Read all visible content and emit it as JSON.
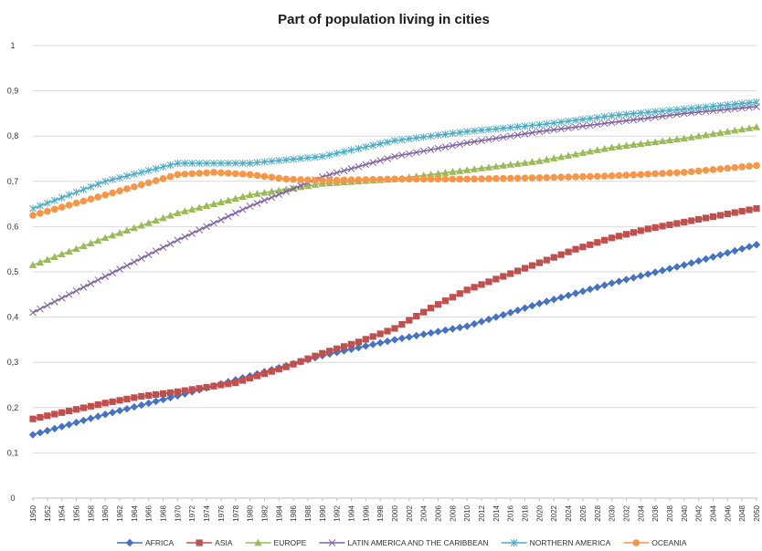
{
  "chart_data": {
    "type": "line",
    "title": "Part of population living in cities",
    "xlabel": "",
    "ylabel": "",
    "ylim": [
      0,
      1
    ],
    "y_ticks": [
      "0",
      "0,1",
      "0,2",
      "0,3",
      "0,4",
      "0,5",
      "0,6",
      "0,7",
      "0,8",
      "0,9",
      "1"
    ],
    "x_range": [
      1950,
      2050
    ],
    "x_tick_labels": [
      "1950",
      "1952",
      "1954",
      "1956",
      "1958",
      "1960",
      "1962",
      "1964",
      "1966",
      "1968",
      "1970",
      "1972",
      "1974",
      "1976",
      "1978",
      "1980",
      "1982",
      "1984",
      "1986",
      "1988",
      "1990",
      "1992",
      "1994",
      "1996",
      "1998",
      "2000",
      "2002",
      "2004",
      "2006",
      "2008",
      "2010",
      "2012",
      "2014",
      "2016",
      "2018",
      "2020",
      "2022",
      "2024",
      "2026",
      "2028",
      "2030",
      "2032",
      "2034",
      "2036",
      "2038",
      "2040",
      "2042",
      "2044",
      "2046",
      "2048",
      "2050"
    ],
    "grid": "horizontal",
    "legend_position": "bottom",
    "series": [
      {
        "name": "AFRICA",
        "color": "#4472c4",
        "marker": "diamond",
        "points": [
          [
            1950,
            0.14
          ],
          [
            1960,
            0.185
          ],
          [
            1970,
            0.226
          ],
          [
            1980,
            0.27
          ],
          [
            1990,
            0.315
          ],
          [
            2000,
            0.35
          ],
          [
            2010,
            0.38
          ],
          [
            2020,
            0.43
          ],
          [
            2030,
            0.475
          ],
          [
            2040,
            0.515
          ],
          [
            2050,
            0.56
          ]
        ]
      },
      {
        "name": "ASIA",
        "color": "#c0504d",
        "marker": "square",
        "points": [
          [
            1950,
            0.175
          ],
          [
            1960,
            0.21
          ],
          [
            1965,
            0.225
          ],
          [
            1970,
            0.235
          ],
          [
            1978,
            0.255
          ],
          [
            1985,
            0.29
          ],
          [
            1990,
            0.32
          ],
          [
            1995,
            0.345
          ],
          [
            2000,
            0.375
          ],
          [
            2005,
            0.42
          ],
          [
            2010,
            0.46
          ],
          [
            2015,
            0.49
          ],
          [
            2020,
            0.52
          ],
          [
            2025,
            0.55
          ],
          [
            2030,
            0.575
          ],
          [
            2035,
            0.595
          ],
          [
            2040,
            0.61
          ],
          [
            2045,
            0.625
          ],
          [
            2050,
            0.64
          ]
        ]
      },
      {
        "name": "EUROPE",
        "color": "#9bbb59",
        "marker": "triangle",
        "points": [
          [
            1950,
            0.515
          ],
          [
            1960,
            0.575
          ],
          [
            1970,
            0.63
          ],
          [
            1980,
            0.67
          ],
          [
            1990,
            0.695
          ],
          [
            2000,
            0.705
          ],
          [
            2010,
            0.725
          ],
          [
            2020,
            0.745
          ],
          [
            2030,
            0.775
          ],
          [
            2040,
            0.795
          ],
          [
            2050,
            0.82
          ]
        ]
      },
      {
        "name": "LATIN AMERICA AND THE CARIBBEAN",
        "color": "#8064a2",
        "marker": "x",
        "points": [
          [
            1950,
            0.41
          ],
          [
            1960,
            0.49
          ],
          [
            1970,
            0.57
          ],
          [
            1980,
            0.645
          ],
          [
            1990,
            0.71
          ],
          [
            2000,
            0.755
          ],
          [
            2010,
            0.785
          ],
          [
            2020,
            0.81
          ],
          [
            2030,
            0.83
          ],
          [
            2040,
            0.85
          ],
          [
            2050,
            0.865
          ]
        ]
      },
      {
        "name": "NORTHERN AMERICA",
        "color": "#4bacc6",
        "marker": "star",
        "points": [
          [
            1950,
            0.64
          ],
          [
            1960,
            0.7
          ],
          [
            1970,
            0.74
          ],
          [
            1980,
            0.74
          ],
          [
            1990,
            0.755
          ],
          [
            2000,
            0.79
          ],
          [
            2010,
            0.81
          ],
          [
            2020,
            0.825
          ],
          [
            2030,
            0.845
          ],
          [
            2040,
            0.86
          ],
          [
            2050,
            0.875
          ]
        ]
      },
      {
        "name": "OCEANIA",
        "color": "#f79646",
        "marker": "circle",
        "points": [
          [
            1950,
            0.625
          ],
          [
            1960,
            0.67
          ],
          [
            1970,
            0.715
          ],
          [
            1975,
            0.72
          ],
          [
            1980,
            0.715
          ],
          [
            1985,
            0.705
          ],
          [
            1990,
            0.702
          ],
          [
            2000,
            0.705
          ],
          [
            2010,
            0.705
          ],
          [
            2020,
            0.708
          ],
          [
            2030,
            0.712
          ],
          [
            2040,
            0.72
          ],
          [
            2050,
            0.735
          ]
        ]
      }
    ]
  }
}
